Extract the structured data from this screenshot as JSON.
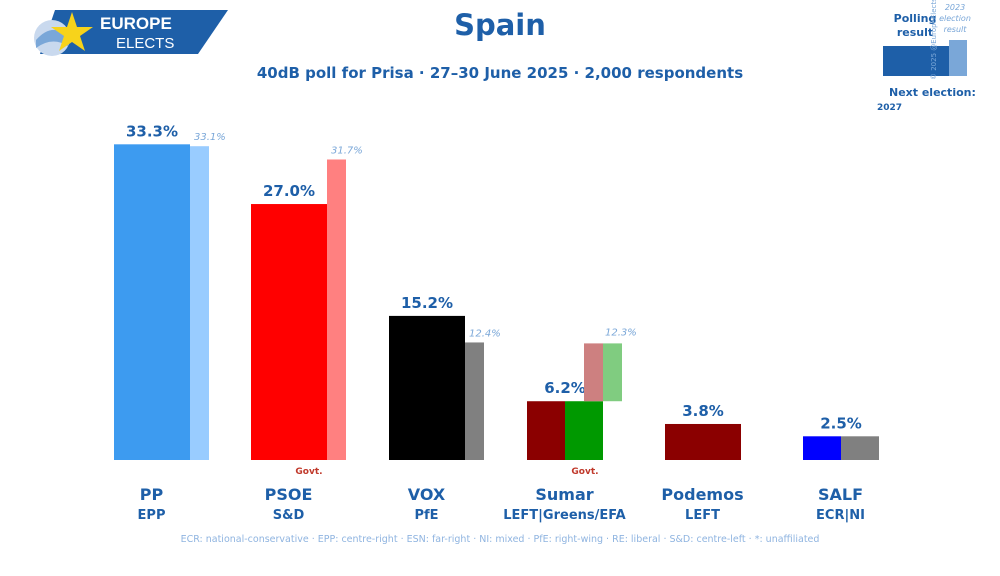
{
  "logo": {
    "line1": "EUROPE",
    "line2": "ELECTS"
  },
  "header": {
    "title": "Spain",
    "subtitle": "40dB poll for Prisa · 27–30 June 2025 · 2,000 respondents"
  },
  "legend": {
    "polling_label": "Polling result",
    "election_label": "2023 election result",
    "next_election_label": "Next election:",
    "next_election_year": "2027",
    "copyright": "© 2025 @EuropeElects"
  },
  "footnote": "ECR: national-conservative · EPP: centre-right · ESN: far-right · NI: mixed · PfE: right-wing · RE: liberal · S&D: centre-left · *: unaffiliated",
  "colors": {
    "text": "#1e5fa8",
    "muted": "#7aa7d8"
  },
  "chart_data": {
    "type": "bar",
    "ylim": [
      0,
      36
    ],
    "categories": [
      "PP",
      "PSOE",
      "VOX",
      "Sumar",
      "Podemos",
      "SALF"
    ],
    "groups": [
      "EPP",
      "S&D",
      "PfE",
      "LEFT|Greens/EFA",
      "LEFT",
      "ECR|NI"
    ],
    "series": [
      {
        "name": "Polling result",
        "values": [
          33.3,
          27.0,
          15.2,
          6.2,
          3.8,
          2.5
        ],
        "labels": [
          "33.3%",
          "27.0%",
          "15.2%",
          "6.2%",
          "3.8%",
          "2.5%"
        ]
      },
      {
        "name": "2023 election result",
        "values": [
          33.1,
          31.7,
          12.4,
          12.3,
          null,
          null
        ],
        "labels": [
          "33.1%",
          "31.7%",
          "12.4%",
          "12.3%",
          "",
          ""
        ]
      }
    ],
    "poll_colors": [
      [
        "#3d9bf0"
      ],
      [
        "#ff0000"
      ],
      [
        "#000000"
      ],
      [
        "#8b0000",
        "#009900"
      ],
      [
        "#8b0000"
      ],
      [
        "#0000ff",
        "#808080"
      ]
    ],
    "prev_colors": [
      [
        "#99ccff"
      ],
      [
        "#ff8080"
      ],
      [
        "#808080"
      ],
      [
        "#cd8080",
        "#80cc80"
      ],
      [],
      []
    ],
    "annotations": [
      {
        "category": "PSOE",
        "text": "Govt."
      },
      {
        "category": "Sumar",
        "text": "Govt."
      }
    ]
  }
}
